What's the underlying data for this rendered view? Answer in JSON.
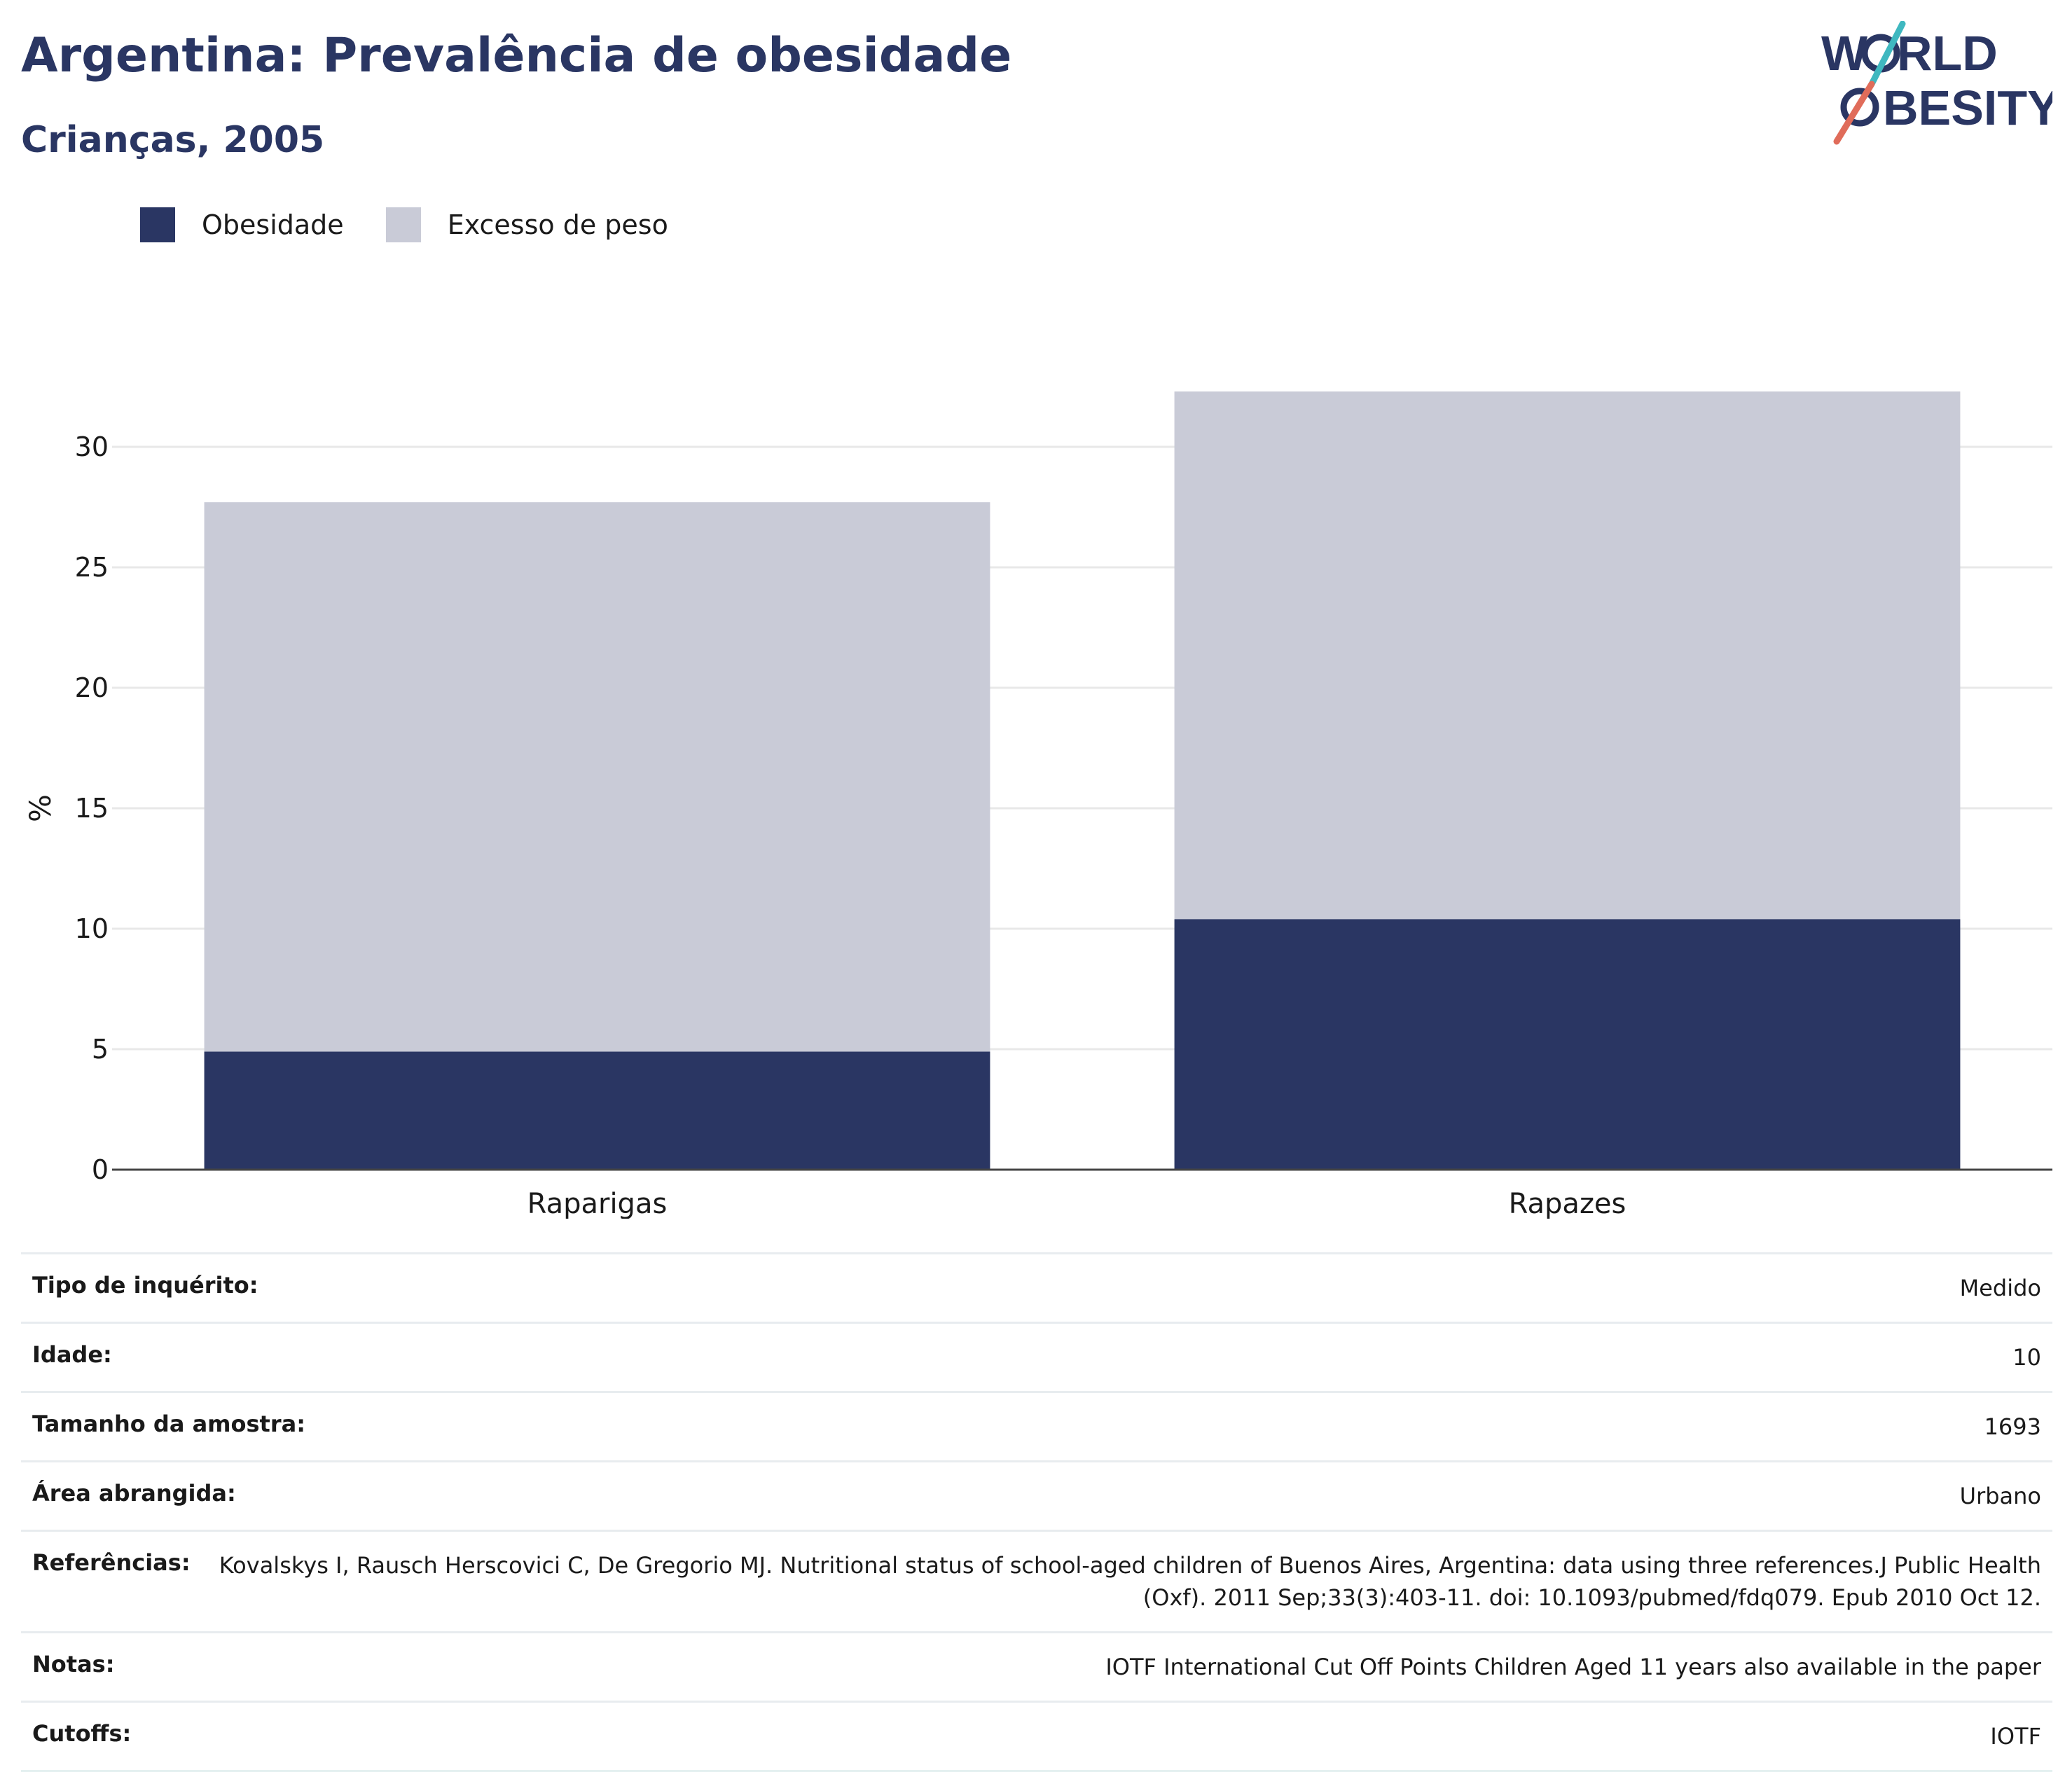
{
  "header": {
    "title": "Argentina: Prevalência de obesidade",
    "subtitle": "Crianças, 2005"
  },
  "logo": {
    "line1": "W",
    "line1b": "RLD",
    "line2b": "BESITY",
    "colors": {
      "navy": "#2a3663",
      "teal": "#3fb8c0",
      "coral": "#e06c5a"
    }
  },
  "legend": [
    {
      "label": "Obesidade",
      "color": "#2a3663"
    },
    {
      "label": "Excesso de peso",
      "color": "#c9cbd7"
    }
  ],
  "chart_data": {
    "type": "bar",
    "stacked": true,
    "title": "Argentina: Prevalência de obesidade",
    "subtitle": "Crianças, 2005",
    "xlabel": "",
    "ylabel": "%",
    "ylim": [
      0,
      33
    ],
    "yticks": [
      0,
      5,
      10,
      15,
      20,
      25,
      30
    ],
    "grid": true,
    "legend_position": "top-left",
    "categories": [
      "Raparigas",
      "Rapazes"
    ],
    "series": [
      {
        "name": "Obesidade",
        "values": [
          4.9,
          10.4
        ],
        "color": "#2a3663"
      },
      {
        "name": "Excesso de peso",
        "values": [
          22.8,
          21.9
        ],
        "color": "#c9cbd7"
      }
    ]
  },
  "meta": [
    {
      "key": "Tipo de inquérito:",
      "value": "Medido"
    },
    {
      "key": "Idade:",
      "value": "10"
    },
    {
      "key": "Tamanho da amostra:",
      "value": "1693"
    },
    {
      "key": "Área abrangida:",
      "value": "Urbano"
    },
    {
      "key": "Referências:",
      "value": "Kovalskys I, Rausch Herscovici C, De Gregorio MJ. Nutritional status of school-aged children of Buenos Aires, Argentina: data using three references.J Public Health (Oxf). 2011 Sep;33(3):403-11. doi: 10.1093/pubmed/fdq079. Epub 2010 Oct 12."
    },
    {
      "key": "Notas:",
      "value": "IOTF International Cut Off Points Children Aged 11 years also available in the paper"
    },
    {
      "key": "Cutoffs:",
      "value": "IOTF"
    }
  ]
}
